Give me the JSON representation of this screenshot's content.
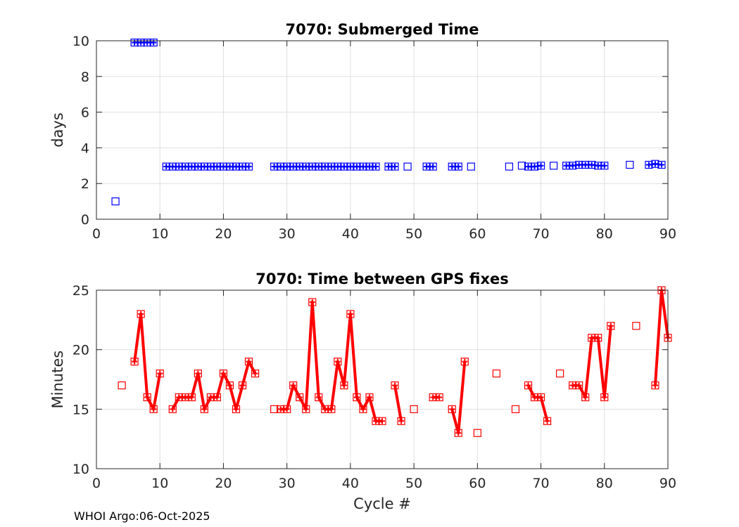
{
  "footer": "WHOI Argo:06-Oct-2025",
  "chart_data": [
    {
      "type": "line",
      "title": "7070: Submerged Time",
      "xlabel": "",
      "ylabel": "days",
      "xlim": [
        0,
        90
      ],
      "ylim": [
        0,
        10
      ],
      "xticks": [
        0,
        10,
        20,
        30,
        40,
        50,
        60,
        70,
        80,
        90
      ],
      "yticks": [
        0,
        2,
        4,
        6,
        8,
        10
      ],
      "grid": true,
      "color": "#0000ff",
      "marker": "square",
      "line_style": "plus-markers-connected",
      "x": [
        3,
        6,
        7,
        8,
        9,
        11,
        12,
        13,
        14,
        15,
        16,
        17,
        18,
        19,
        20,
        21,
        22,
        23,
        24,
        28,
        29,
        30,
        31,
        32,
        33,
        34,
        35,
        36,
        37,
        38,
        39,
        40,
        41,
        42,
        43,
        44,
        46,
        47,
        49,
        52,
        53,
        56,
        57,
        59,
        65,
        67,
        68,
        69,
        70,
        72,
        74,
        75,
        76,
        77,
        78,
        79,
        80,
        84,
        87,
        88,
        89
      ],
      "y": [
        1.0,
        9.9,
        9.9,
        9.9,
        9.9,
        2.95,
        2.95,
        2.95,
        2.95,
        2.95,
        2.95,
        2.95,
        2.95,
        2.95,
        2.95,
        2.95,
        2.95,
        2.95,
        2.95,
        2.95,
        2.95,
        2.95,
        2.95,
        2.95,
        2.95,
        2.95,
        2.95,
        2.95,
        2.95,
        2.95,
        2.95,
        2.95,
        2.95,
        2.95,
        2.95,
        2.95,
        2.95,
        2.95,
        2.95,
        2.95,
        2.95,
        2.95,
        2.95,
        2.95,
        2.95,
        3.0,
        2.95,
        2.95,
        3.0,
        3.0,
        3.0,
        3.0,
        3.05,
        3.05,
        3.05,
        3.0,
        3.0,
        3.05,
        3.05,
        3.1,
        3.05
      ],
      "segments": [
        [
          6,
          9
        ],
        [
          11,
          24
        ],
        [
          28,
          44
        ],
        [
          46,
          47
        ],
        [
          52,
          53
        ],
        [
          56,
          57
        ],
        [
          68,
          70
        ],
        [
          74,
          80
        ],
        [
          87,
          89
        ]
      ]
    },
    {
      "type": "line",
      "title": "7070: Time between GPS fixes",
      "xlabel": "Cycle #",
      "ylabel": "Minutes",
      "xlim": [
        0,
        90
      ],
      "ylim": [
        10,
        25
      ],
      "xticks": [
        0,
        10,
        20,
        30,
        40,
        50,
        60,
        70,
        80,
        90
      ],
      "yticks": [
        10,
        15,
        20,
        25
      ],
      "grid": true,
      "color": "#ff0000",
      "marker": "square",
      "line_style": "thick-connected",
      "x": [
        4,
        6,
        7,
        8,
        9,
        10,
        12,
        13,
        14,
        15,
        16,
        17,
        18,
        19,
        20,
        21,
        22,
        23,
        24,
        25,
        28,
        29,
        30,
        31,
        32,
        33,
        34,
        35,
        36,
        37,
        38,
        39,
        40,
        41,
        42,
        43,
        44,
        45,
        47,
        48,
        50,
        53,
        54,
        56,
        57,
        58,
        60,
        63,
        66,
        68,
        69,
        70,
        71,
        73,
        75,
        76,
        77,
        78,
        79,
        80,
        81,
        85,
        88,
        89,
        90
      ],
      "y": [
        17,
        19,
        23,
        16,
        15,
        18,
        15,
        16,
        16,
        16,
        18,
        15,
        16,
        16,
        18,
        17,
        15,
        17,
        19,
        18,
        15,
        15,
        15,
        17,
        16,
        15,
        24,
        16,
        15,
        15,
        19,
        17,
        23,
        16,
        15,
        16,
        14,
        14,
        17,
        14,
        15,
        16,
        16,
        15,
        13,
        19,
        13,
        18,
        15,
        17,
        16,
        16,
        14,
        18,
        17,
        17,
        16,
        21,
        21,
        16,
        22,
        22,
        17,
        25,
        21
      ],
      "segments": [
        [
          6,
          10
        ],
        [
          12,
          25
        ],
        [
          29,
          45
        ],
        [
          47,
          48
        ],
        [
          53,
          54
        ],
        [
          56,
          58
        ],
        [
          68,
          71
        ],
        [
          75,
          81
        ],
        [
          88,
          90
        ]
      ]
    }
  ]
}
